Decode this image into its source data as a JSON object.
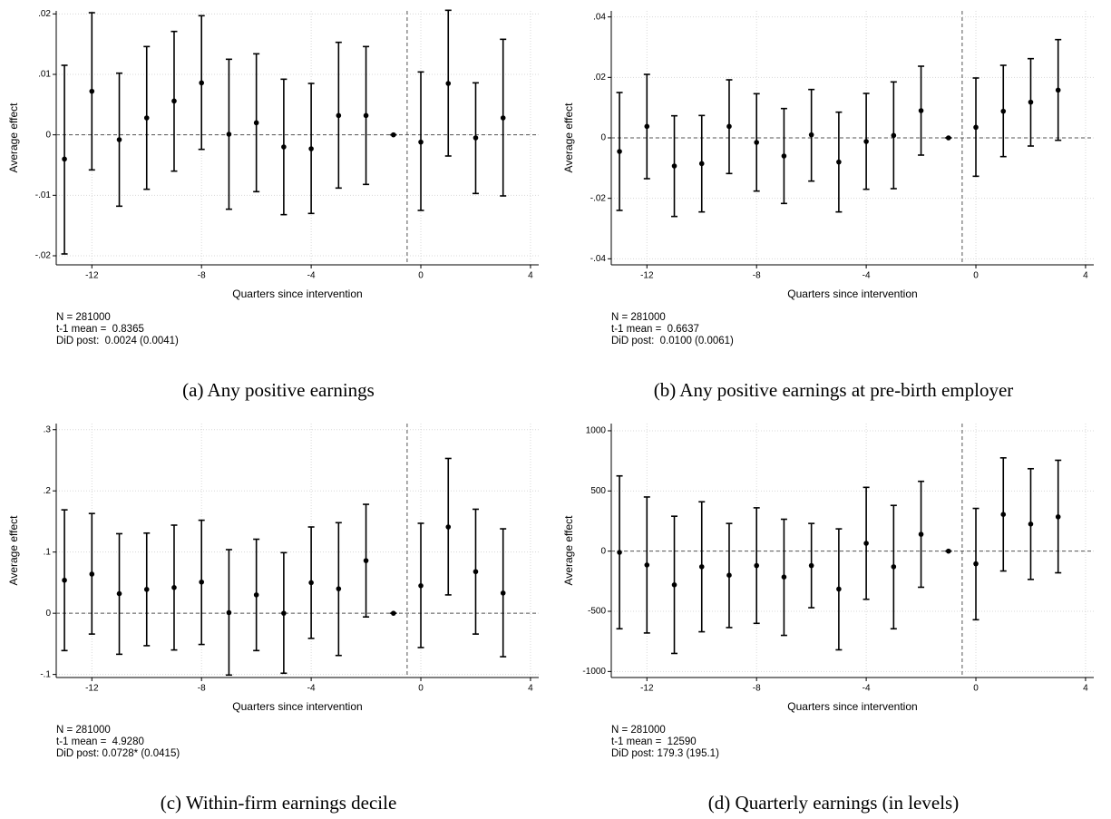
{
  "chart_data": [
    {
      "type": "errorbar",
      "caption": "(a) Any positive earnings",
      "xlabel": "Quarters since intervention",
      "ylabel": "Average effect",
      "notes": [
        "N = 281000",
        "t-1 mean =  0.8365",
        "DiD post:  0.0024 (0.0041)"
      ],
      "x": [
        -13,
        -12,
        -11,
        -10,
        -9,
        -8,
        -7,
        -6,
        -5,
        -4,
        -3,
        -2,
        -1,
        0,
        1,
        2,
        3
      ],
      "values": [
        -0.004,
        0.0072,
        -0.0008,
        0.0028,
        0.0056,
        0.0086,
        0.0001,
        0.002,
        -0.002,
        -0.0023,
        0.0032,
        0.0032,
        0,
        -0.0012,
        0.0085,
        -0.0005,
        0.0028
      ],
      "lower": [
        -0.0197,
        -0.0058,
        -0.0118,
        -0.009,
        -0.006,
        -0.0024,
        -0.0123,
        -0.0094,
        -0.0132,
        -0.013,
        -0.0088,
        -0.0082,
        0,
        -0.0125,
        -0.0035,
        -0.0097,
        -0.0101
      ],
      "upper": [
        0.0115,
        0.0202,
        0.0102,
        0.0146,
        0.0171,
        0.0197,
        0.0125,
        0.0134,
        0.0092,
        0.0085,
        0.0153,
        0.0146,
        0,
        0.0104,
        0.0206,
        0.0086,
        0.0158
      ],
      "xlim": [
        -13.3,
        4.3
      ],
      "xticks": [
        -12,
        -8,
        -4,
        0,
        4
      ],
      "ylim": [
        -0.0215,
        0.0205
      ],
      "yticks": [
        {
          "value": -0.02,
          "label": "-.02"
        },
        {
          "value": -0.01,
          "label": "-.01"
        },
        0,
        {
          "value": 0.01,
          "label": ".01"
        },
        {
          "value": 0.02,
          "label": ".02"
        }
      ],
      "grid": true,
      "ref_x": -0.5,
      "ref_y": 0,
      "color": "#000000"
    },
    {
      "type": "errorbar",
      "caption": "(b) Any positive earnings at pre-birth employer",
      "xlabel": "Quarters since intervention",
      "ylabel": "Average effect",
      "notes": [
        "N = 281000",
        "t-1 mean =  0.6637",
        "DiD post:  0.0100 (0.0061)"
      ],
      "x": [
        -13,
        -12,
        -11,
        -10,
        -9,
        -8,
        -7,
        -6,
        -5,
        -4,
        -3,
        -2,
        -1,
        0,
        1,
        2,
        3
      ],
      "values": [
        -0.0045,
        0.0038,
        -0.0093,
        -0.0085,
        0.0038,
        -0.0015,
        -0.006,
        0.001,
        -0.008,
        -0.0012,
        0.0008,
        0.009,
        0,
        0.0035,
        0.0088,
        0.0118,
        0.0158
      ],
      "lower": [
        -0.024,
        -0.0135,
        -0.026,
        -0.0245,
        -0.0118,
        -0.0176,
        -0.0217,
        -0.0143,
        -0.0245,
        -0.017,
        -0.0168,
        -0.0057,
        0,
        -0.0127,
        -0.0062,
        -0.0027,
        -0.0008
      ],
      "upper": [
        0.015,
        0.021,
        0.0073,
        0.0074,
        0.0192,
        0.0146,
        0.0097,
        0.016,
        0.0085,
        0.0147,
        0.0185,
        0.0237,
        0,
        0.0198,
        0.024,
        0.0262,
        0.0325
      ],
      "xlim": [
        -13.3,
        4.3
      ],
      "xticks": [
        -12,
        -8,
        -4,
        0,
        4
      ],
      "ylim": [
        -0.042,
        0.042
      ],
      "yticks": [
        {
          "value": -0.04,
          "label": "-.04"
        },
        {
          "value": -0.02,
          "label": "-.02"
        },
        0,
        {
          "value": 0.02,
          "label": ".02"
        },
        {
          "value": 0.04,
          "label": ".04"
        }
      ],
      "grid": true,
      "ref_x": -0.5,
      "ref_y": 0,
      "color": "#000000"
    },
    {
      "type": "errorbar",
      "caption": "(c) Within-firm earnings decile",
      "xlabel": "Quarters since intervention",
      "ylabel": "Average effect",
      "notes": [
        "N = 281000",
        "t-1 mean =  4.9280",
        "DiD post: 0.0728* (0.0415)"
      ],
      "x": [
        -13,
        -12,
        -11,
        -10,
        -9,
        -8,
        -7,
        -6,
        -5,
        -4,
        -3,
        -2,
        -1,
        0,
        1,
        2,
        3
      ],
      "values": [
        0.054,
        0.064,
        0.032,
        0.039,
        0.042,
        0.051,
        0.001,
        0.03,
        0.0,
        0.05,
        0.04,
        0.086,
        0,
        0.045,
        0.141,
        0.068,
        0.033
      ],
      "lower": [
        -0.061,
        -0.034,
        -0.067,
        -0.053,
        -0.06,
        -0.051,
        -0.101,
        -0.061,
        -0.098,
        -0.041,
        -0.069,
        -0.006,
        0,
        -0.056,
        0.03,
        -0.034,
        -0.071
      ],
      "upper": [
        0.169,
        0.163,
        0.13,
        0.131,
        0.144,
        0.152,
        0.104,
        0.121,
        0.099,
        0.141,
        0.148,
        0.178,
        0,
        0.147,
        0.253,
        0.17,
        0.138
      ],
      "xlim": [
        -13.3,
        4.3
      ],
      "xticks": [
        -12,
        -8,
        -4,
        0,
        4
      ],
      "ylim": [
        -0.105,
        0.31
      ],
      "yticks": [
        {
          "value": -0.1,
          "label": "-.1"
        },
        0,
        {
          "value": 0.1,
          "label": ".1"
        },
        {
          "value": 0.2,
          "label": ".2"
        },
        {
          "value": 0.3,
          "label": ".3"
        }
      ],
      "grid": true,
      "ref_x": -0.5,
      "ref_y": 0,
      "color": "#000000"
    },
    {
      "type": "errorbar",
      "caption": "(d) Quarterly earnings (in levels)",
      "xlabel": "Quarters since intervention",
      "ylabel": "Average effect",
      "notes": [
        "N = 281000",
        "t-1 mean =  12590",
        "DiD post: 179.3 (195.1)"
      ],
      "x": [
        -13,
        -12,
        -11,
        -10,
        -9,
        -8,
        -7,
        -6,
        -5,
        -4,
        -3,
        -2,
        -1,
        0,
        1,
        2,
        3
      ],
      "values": [
        -10,
        -115,
        -280,
        -130,
        -200,
        -120,
        -215,
        -120,
        -315,
        65,
        -130,
        140,
        0,
        -105,
        305,
        225,
        285
      ],
      "lower": [
        -645,
        -680,
        -850,
        -670,
        -635,
        -600,
        -700,
        -470,
        -820,
        -400,
        -645,
        -300,
        0,
        -570,
        -165,
        -235,
        -180
      ],
      "upper": [
        625,
        450,
        290,
        410,
        230,
        360,
        265,
        230,
        185,
        530,
        380,
        580,
        0,
        355,
        775,
        685,
        755
      ],
      "xlim": [
        -13.3,
        4.3
      ],
      "xticks": [
        -12,
        -8,
        -4,
        0,
        4
      ],
      "ylim": [
        -1050,
        1060
      ],
      "yticks": [
        -1000,
        -500,
        0,
        500,
        1000
      ],
      "grid": true,
      "ref_x": -0.5,
      "ref_y": 0,
      "color": "#000000"
    }
  ]
}
